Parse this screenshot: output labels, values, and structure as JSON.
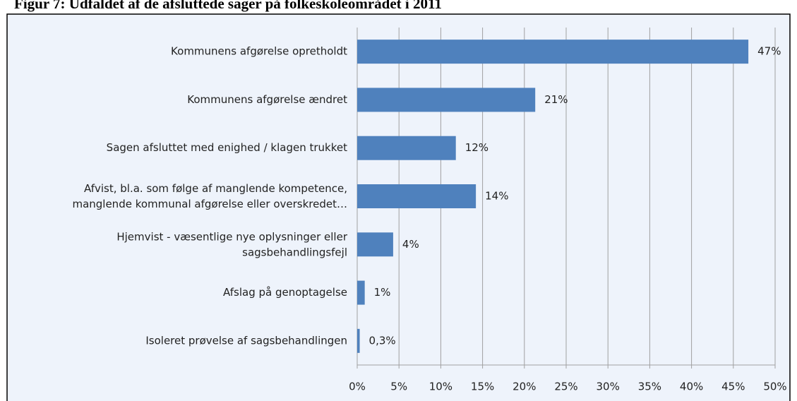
{
  "chart_data": {
    "type": "barh",
    "title": "Figur 7: Udfaldet af de afsluttede sager på folkeskoleområdet i 2011",
    "categories": [
      "Kommunens afgørelse opretholdt",
      "Kommunens afgørelse ændret",
      "Sagen afsluttet med enighed / klagen trukket",
      "Afvist, bl.a. som følge af manglende kompetence,\nmanglende kommunal afgørelse eller overskredet…",
      "Hjemvist - væsentlige nye oplysninger eller\nsagsbehandlingsfejl",
      "Afslag på genoptagelse",
      "Isoleret prøvelse af sagsbehandlingen"
    ],
    "values": [
      46.8,
      21.3,
      11.8,
      14.2,
      4.3,
      0.9,
      0.3
    ],
    "value_labels": [
      "47%",
      "21%",
      "12%",
      "14%",
      "4%",
      "1%",
      "0,3%"
    ],
    "color": "#4f81bd",
    "xlim": [
      0,
      50
    ],
    "xticks": [
      {
        "value": 0,
        "label": "0%"
      },
      {
        "value": 5,
        "label": "5%"
      },
      {
        "value": 10,
        "label": "10%"
      },
      {
        "value": 15,
        "label": "15%"
      },
      {
        "value": 20,
        "label": "20%"
      },
      {
        "value": 25,
        "label": "25%"
      },
      {
        "value": 30,
        "label": "30%"
      },
      {
        "value": 35,
        "label": "35%"
      },
      {
        "value": 40,
        "label": "40%"
      },
      {
        "value": 45,
        "label": "45%"
      },
      {
        "value": 50,
        "label": "50%"
      }
    ],
    "grid": true
  }
}
